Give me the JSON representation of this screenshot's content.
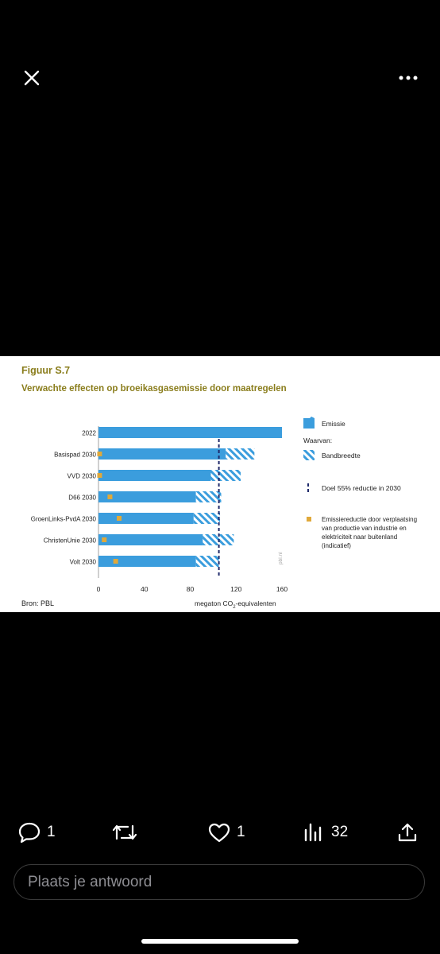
{
  "figure": {
    "number": "Figuur S.7",
    "title": "Verwachte effecten op broeikasgasemissie door maatregelen",
    "source": "Bron: PBL",
    "watermark": "pbl.nl"
  },
  "chart_data": {
    "type": "bar",
    "orientation": "horizontal",
    "stacked": true,
    "categories": [
      "2022",
      "Basispad 2030",
      "VVD 2030",
      "D66 2030",
      "GroenLinks-PvdA 2030",
      "ChristenUnie 2030",
      "Volt 2030"
    ],
    "emissie": [
      160,
      111,
      98,
      85,
      83,
      91,
      85
    ],
    "bandbreedte": [
      0,
      25,
      26,
      22,
      23,
      27,
      20
    ],
    "emissiereductie_verplaatsing": [
      null,
      1,
      1,
      10,
      18,
      5,
      15
    ],
    "target_line": 105,
    "xlim": [
      0,
      160
    ],
    "xticks": [
      "0",
      "40",
      "80",
      "120",
      "160"
    ],
    "xlabel_main": "megaton CO",
    "xlabel_sub": "2",
    "xlabel_tail": "-equivalenten",
    "colors": {
      "emissie": "#3b9ddd",
      "hatch": "#3b9ddd",
      "target": "#1f2a6b",
      "reductie": "#e0a93a"
    },
    "legend": {
      "emissie": "Emissie",
      "waarvan": "Waarvan:",
      "bandbreedte": "Bandbreedte",
      "doel": "Doel 55% reductie in 2030",
      "reductie_lines": [
        "Emissiereductie door verplaatsing",
        "van productie van industrie en",
        "elektriciteit naar buitenland",
        "(indicatief)"
      ]
    }
  },
  "actions": {
    "replies": "1",
    "likes": "1",
    "views": "32"
  },
  "reply": {
    "placeholder": "Plaats je antwoord"
  },
  "icons": [
    "close-icon",
    "more-icon",
    "reply-icon",
    "retweet-icon",
    "like-icon",
    "views-icon",
    "share-icon"
  ]
}
